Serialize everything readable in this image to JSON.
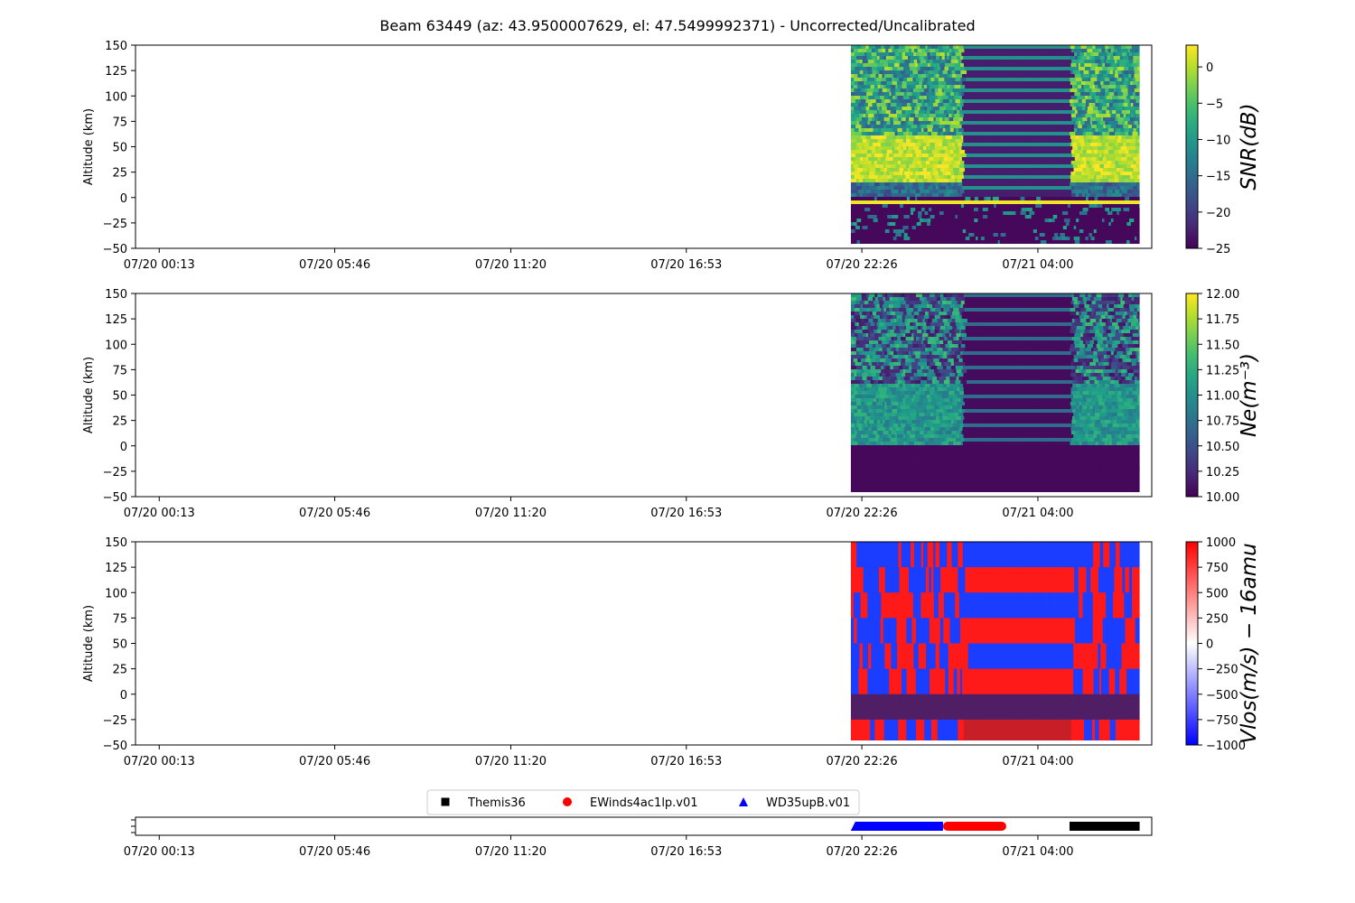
{
  "chart_data": {
    "type": "heatmap",
    "title": "Beam 63449 (az: 43.9500007629, el: 47.5499992371) - Uncorrected/Uncalibrated",
    "x_ticks": [
      "07/20 00:13",
      "07/20 05:46",
      "07/20 11:20",
      "07/20 16:53",
      "07/20 22:26",
      "07/21 04:00"
    ],
    "x_range": [
      "07/19 23:28",
      "07/21 07:36"
    ],
    "data_time_range": [
      "07/20 22:05",
      "07/21 07:13"
    ],
    "panels": [
      {
        "name": "snr",
        "ylabel": "Altitude (km)",
        "ylim": [
          -50,
          150
        ],
        "yticks": [
          150,
          125,
          100,
          75,
          50,
          25,
          0,
          -25,
          -50
        ],
        "colorbar": {
          "label": "SNR(dB)",
          "range": [
            -25,
            3
          ],
          "ticks": [
            "0",
            "−5",
            "−10",
            "−15",
            "−20",
            "−25"
          ],
          "tick_values": [
            0,
            -5,
            -10,
            -15,
            -20,
            -25
          ],
          "colormap": "viridis"
        }
      },
      {
        "name": "ne",
        "ylabel": "Altitude (km)",
        "ylim": [
          -50,
          150
        ],
        "yticks": [
          150,
          125,
          100,
          75,
          50,
          25,
          0,
          -25,
          -50
        ],
        "colorbar": {
          "label": "Ne(m⁻³)",
          "range": [
            10,
            12
          ],
          "ticks": [
            "12.00",
            "11.75",
            "11.50",
            "11.25",
            "11.00",
            "10.75",
            "10.50",
            "10.25",
            "10.00"
          ],
          "tick_values": [
            12,
            11.75,
            11.5,
            11.25,
            11,
            10.75,
            10.5,
            10.25,
            10
          ],
          "colormap": "viridis"
        }
      },
      {
        "name": "vlos",
        "ylabel": "Altitude (km)",
        "ylim": [
          -50,
          150
        ],
        "yticks": [
          150,
          125,
          100,
          75,
          50,
          25,
          0,
          -25,
          -50
        ],
        "colorbar": {
          "label": "Vlos(m/s) − 16amu",
          "range": [
            -1000,
            1000
          ],
          "ticks": [
            "1000",
            "750",
            "500",
            "250",
            "0",
            "−250",
            "−500",
            "−750",
            "−1000"
          ],
          "tick_values": [
            1000,
            750,
            500,
            250,
            0,
            -250,
            -500,
            -750,
            -1000
          ],
          "colormap": "bwr"
        }
      }
    ],
    "experiments_legend": [
      {
        "name": "Themis36",
        "marker": "square",
        "color": "#000000",
        "time_range": [
          "07/21 05:00",
          "07/21 07:13"
        ]
      },
      {
        "name": "EWinds4ac1lp.v01",
        "marker": "circle",
        "color": "#ff0000",
        "time_range": [
          "07/21 01:00",
          "07/21 03:00"
        ]
      },
      {
        "name": "WD35upB.v01",
        "marker": "triangle",
        "color": "#0000ff",
        "time_range": [
          "07/20 22:05",
          "07/21 01:00"
        ]
      }
    ]
  }
}
